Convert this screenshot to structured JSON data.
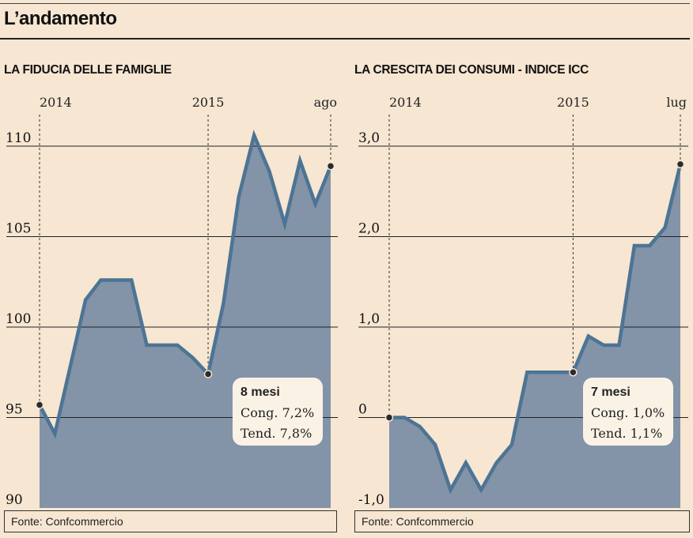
{
  "title": "L’andamento",
  "chart_data": [
    {
      "type": "area",
      "title": "LA FIDUCIA DELLE FAMIGLIE",
      "source": "Fonte: Confcommercio",
      "ylim": [
        90,
        110
      ],
      "yticks": [
        90,
        95,
        100,
        105,
        110
      ],
      "ytick_labels": [
        "90",
        "95",
        "100",
        "105",
        "110"
      ],
      "period_labels": [
        "2014",
        "2015",
        "ago"
      ],
      "period_index": [
        0,
        11,
        19
      ],
      "x": [
        "2014-01",
        "2014-02",
        "2014-03",
        "2014-04",
        "2014-05",
        "2014-06",
        "2014-07",
        "2014-08",
        "2014-09",
        "2014-10",
        "2014-11",
        "2014-12",
        "2015-01",
        "2015-02",
        "2015-03",
        "2015-04",
        "2015-05",
        "2015-06",
        "2015-07",
        "2015-08"
      ],
      "values": [
        95.7,
        94.1,
        97.8,
        101.5,
        102.6,
        102.6,
        102.6,
        99.0,
        99.0,
        99.0,
        98.3,
        97.4,
        101.3,
        107.2,
        110.6,
        108.6,
        105.7,
        109.2,
        106.8,
        108.9
      ],
      "callout": {
        "heading": "8 mesi",
        "line1": "Cong. 7,2%",
        "line2": "Tend. 7,8%"
      }
    },
    {
      "type": "area",
      "title": "LA CRESCITA DEI CONSUMI - INDICE ICC",
      "source": "Fonte: Confcommercio",
      "ylim": [
        -1.0,
        3.0
      ],
      "yticks": [
        -1.0,
        0,
        1.0,
        2.0,
        3.0
      ],
      "ytick_labels": [
        "-1,0",
        "0",
        "1,0",
        "2,0",
        "3,0"
      ],
      "period_labels": [
        "2014",
        "2015",
        "lug"
      ],
      "period_index": [
        0,
        12,
        19
      ],
      "x": [
        "2014-01",
        "2014-02",
        "2014-03",
        "2014-04",
        "2014-05",
        "2014-06",
        "2014-07",
        "2014-08",
        "2014-09",
        "2014-10",
        "2014-11",
        "2014-12",
        "2015-01",
        "2015-02",
        "2015-03",
        "2015-04",
        "2015-05",
        "2015-06",
        "2015-07",
        "2015-08"
      ],
      "values": [
        0.0,
        0.0,
        -0.1,
        -0.3,
        -0.8,
        -0.5,
        -0.8,
        -0.5,
        -0.3,
        0.5,
        0.5,
        0.5,
        0.5,
        0.9,
        0.8,
        0.8,
        1.9,
        1.9,
        2.1,
        2.8
      ],
      "callout": {
        "heading": "7 mesi",
        "line1": "Cong. 1,0%",
        "line2": "Tend. 1,1%"
      }
    }
  ],
  "colors": {
    "background": "#f6e6d2",
    "area": "#8393a8",
    "line": "#4d7494",
    "callout_bg": "#fbf2e6"
  }
}
